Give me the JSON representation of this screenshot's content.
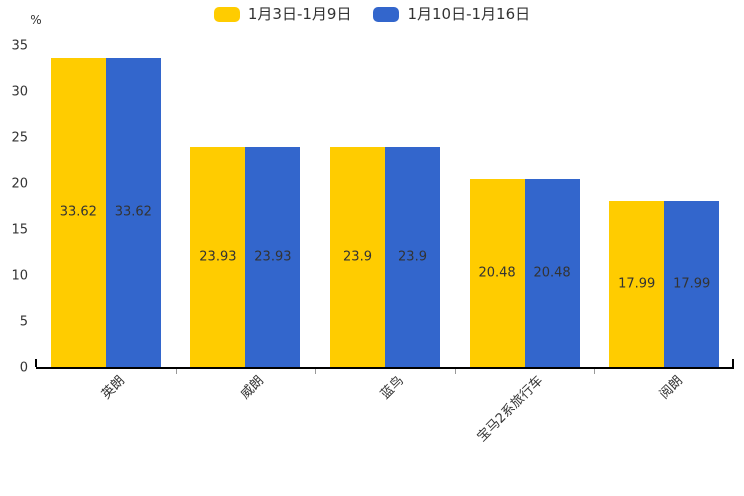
{
  "chart_data": {
    "type": "bar",
    "categories": [
      "英朗",
      "威朗",
      "蓝鸟",
      "宝马2系旅行车",
      "阅朗"
    ],
    "series": [
      {
        "name": "1月3日-1月9日",
        "color": "#FFCC00",
        "values": [
          33.62,
          23.93,
          23.9,
          20.48,
          17.99
        ]
      },
      {
        "name": "1月10日-1月16日",
        "color": "#3366CC",
        "values": [
          33.62,
          23.93,
          23.9,
          20.48,
          17.99
        ]
      }
    ],
    "title": "",
    "xlabel": "",
    "ylabel": "%",
    "ylim": [
      0,
      35
    ],
    "yticks": [
      0,
      5,
      10,
      15,
      20,
      25,
      30,
      35
    ],
    "grid": false,
    "legend_position": "top",
    "value_labels_inside_bars": true,
    "colors": {
      "axis_line": "#000000",
      "inner_tick": "#999999",
      "text": "#333333",
      "background": "#ffffff"
    }
  }
}
